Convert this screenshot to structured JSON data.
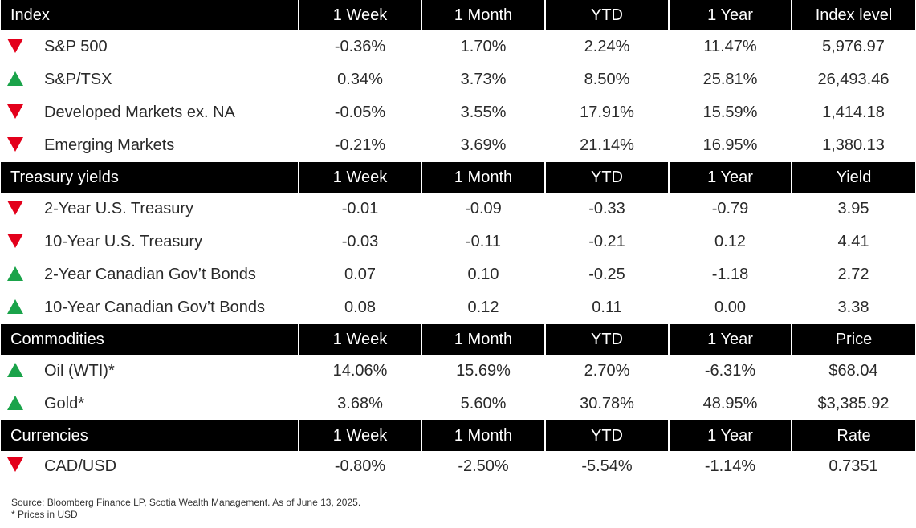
{
  "colors": {
    "header_bg": "#000000",
    "header_text": "#ffffff",
    "up": "#1aa34a",
    "down": "#e3001b"
  },
  "sections": [
    {
      "headers": [
        "Index",
        "1 Week",
        "1 Month",
        "YTD",
        "1 Year",
        "Index level"
      ],
      "rows": [
        {
          "direction": "down",
          "icon": "down-arrow-icon",
          "name": "S&P 500",
          "week": "-0.36%",
          "month": "1.70%",
          "ytd": "2.24%",
          "year": "11.47%",
          "level": "5,976.97"
        },
        {
          "direction": "up",
          "icon": "up-arrow-icon",
          "name": "S&P/TSX",
          "week": "0.34%",
          "month": "3.73%",
          "ytd": "8.50%",
          "year": "25.81%",
          "level": "26,493.46"
        },
        {
          "direction": "down",
          "icon": "down-arrow-icon",
          "name": "Developed Markets ex. NA",
          "week": "-0.05%",
          "month": "3.55%",
          "ytd": "17.91%",
          "year": "15.59%",
          "level": "1,414.18"
        },
        {
          "direction": "down",
          "icon": "down-arrow-icon",
          "name": "Emerging Markets",
          "week": "-0.21%",
          "month": "3.69%",
          "ytd": "21.14%",
          "year": "16.95%",
          "level": "1,380.13"
        }
      ]
    },
    {
      "headers": [
        "Treasury yields",
        "1 Week",
        "1 Month",
        "YTD",
        "1 Year",
        "Yield"
      ],
      "rows": [
        {
          "direction": "down",
          "icon": "down-arrow-icon",
          "name": "2-Year U.S. Treasury",
          "week": "-0.01",
          "month": "-0.09",
          "ytd": "-0.33",
          "year": "-0.79",
          "level": "3.95"
        },
        {
          "direction": "down",
          "icon": "down-arrow-icon",
          "name": "10-Year U.S. Treasury",
          "week": "-0.03",
          "month": "-0.11",
          "ytd": "-0.21",
          "year": "0.12",
          "level": "4.41"
        },
        {
          "direction": "up",
          "icon": "up-arrow-icon",
          "name": "2-Year Canadian Gov’t Bonds",
          "week": "0.07",
          "month": "0.10",
          "ytd": "-0.25",
          "year": "-1.18",
          "level": "2.72"
        },
        {
          "direction": "up",
          "icon": "up-arrow-icon",
          "name": "10-Year Canadian Gov’t Bonds",
          "week": "0.08",
          "month": "0.12",
          "ytd": "0.11",
          "year": "0.00",
          "level": "3.38"
        }
      ]
    },
    {
      "headers": [
        "Commodities",
        "1 Week",
        "1 Month",
        "YTD",
        "1 Year",
        "Price"
      ],
      "rows": [
        {
          "direction": "up",
          "icon": "up-arrow-icon",
          "name": "Oil (WTI)*",
          "week": "14.06%",
          "month": "15.69%",
          "ytd": "2.70%",
          "year": "-6.31%",
          "level": "$68.04"
        },
        {
          "direction": "up",
          "icon": "up-arrow-icon",
          "name": "Gold*",
          "week": "3.68%",
          "month": "5.60%",
          "ytd": "30.78%",
          "year": "48.95%",
          "level": "$3,385.92"
        }
      ]
    },
    {
      "headers": [
        "Currencies",
        "1 Week",
        "1 Month",
        "YTD",
        "1 Year",
        "Rate"
      ],
      "rows": [
        {
          "direction": "down",
          "icon": "down-arrow-icon",
          "name": "CAD/USD",
          "week": "-0.80%",
          "month": "-2.50%",
          "ytd": "-5.54%",
          "year": "-1.14%",
          "level": "0.7351"
        }
      ]
    }
  ],
  "notes": {
    "source": "Source: Bloomberg Finance LP, Scotia Wealth Management. As of June 13, 2025.",
    "footnote": "* Prices in USD"
  }
}
